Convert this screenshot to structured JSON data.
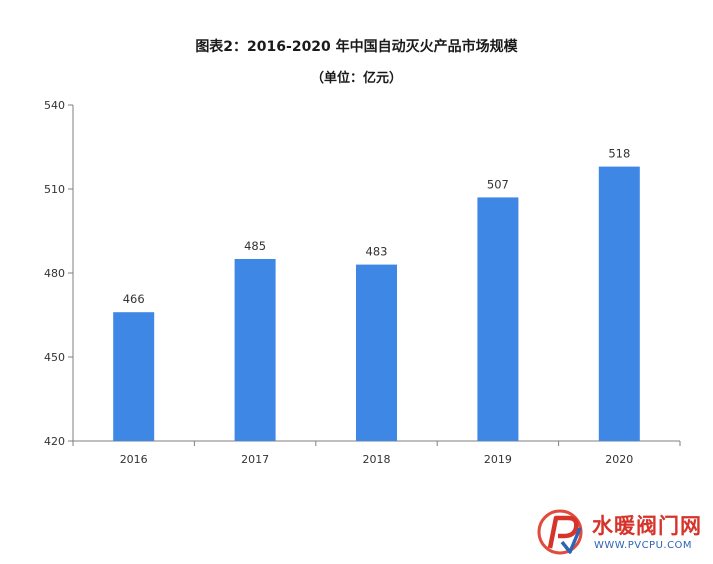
{
  "chart_data": {
    "type": "bar",
    "title": "图表2：2016-2020 年中国自动灭火产品市场规模",
    "subtitle": "（单位：亿元）",
    "categories": [
      "2016",
      "2017",
      "2018",
      "2019",
      "2020"
    ],
    "values": [
      466,
      485,
      483,
      507,
      518
    ],
    "data_labels": [
      "466",
      "485",
      "483",
      "507",
      "518"
    ],
    "ylim": [
      420,
      540
    ],
    "yticks": [
      420,
      450,
      480,
      510,
      540
    ],
    "ytick_labels": [
      "420",
      "450",
      "480",
      "510",
      "540"
    ],
    "xlabel": "",
    "ylabel": "",
    "bar_color": "#3f87e5",
    "grid": false,
    "legend": "none"
  },
  "watermark": {
    "text": "水暖阀门网",
    "url": "WWW.PVCPU.COM"
  }
}
